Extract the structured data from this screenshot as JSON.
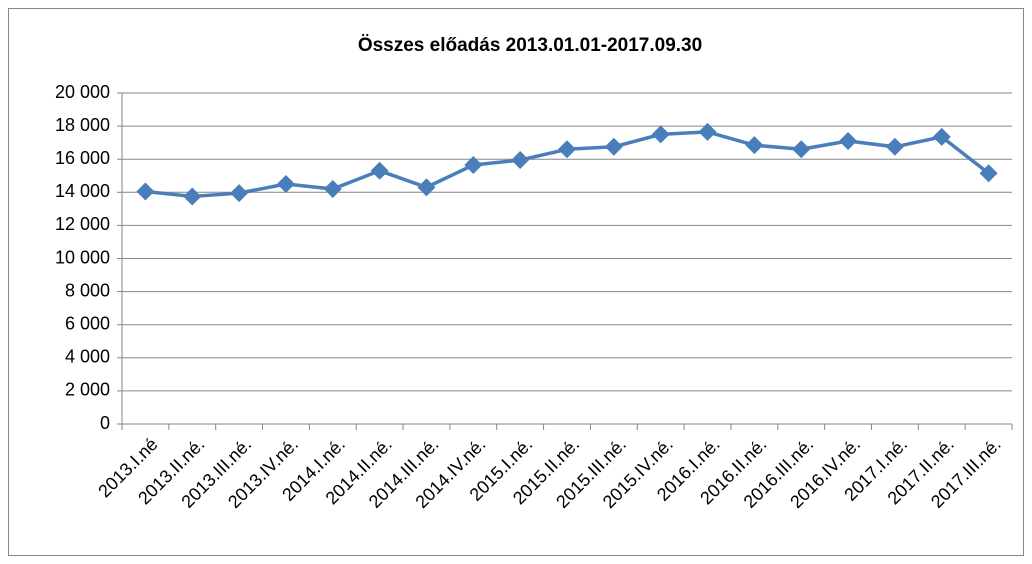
{
  "chart_data": {
    "type": "line",
    "title": "Összes előadás 2013.01.01-2017.09.30",
    "categories": [
      "2013.I.né",
      "2013.II.né.",
      "2013.III.né.",
      "2013.IV.né.",
      "2014.I.né.",
      "2014.II.né.",
      "2014.III.né.",
      "2014.IV.né.",
      "2015.I.né.",
      "2015.II.né.",
      "2015.III.né.",
      "2015.IV.né.",
      "2016.I.né.",
      "2016.II.né.",
      "2016.III.né.",
      "2016.IV.né.",
      "2017.I.né.",
      "2017.II.né.",
      "2017.III.né."
    ],
    "series": [
      {
        "name": "Összes előadás",
        "color": "#4a7ebb",
        "values": [
          14050,
          13750,
          13950,
          14500,
          14200,
          15300,
          14300,
          15650,
          15950,
          16600,
          16750,
          17500,
          17650,
          16850,
          16600,
          17100,
          16750,
          17350,
          15150
        ]
      }
    ],
    "ylim": [
      0,
      20000
    ],
    "yticks": [
      0,
      {
        "value": 2000,
        "label": "2 000"
      },
      {
        "value": 4000,
        "label": "4 000"
      },
      {
        "value": 6000,
        "label": "6 000"
      },
      {
        "value": 8000,
        "label": "8 000"
      },
      {
        "value": 10000,
        "label": "10 000"
      },
      {
        "value": 12000,
        "label": "12 000"
      },
      {
        "value": 14000,
        "label": "14 000"
      },
      {
        "value": 16000,
        "label": "16 000"
      },
      {
        "value": 18000,
        "label": "18 000"
      },
      {
        "value": 20000,
        "label": "20 000"
      }
    ],
    "grid": true
  }
}
